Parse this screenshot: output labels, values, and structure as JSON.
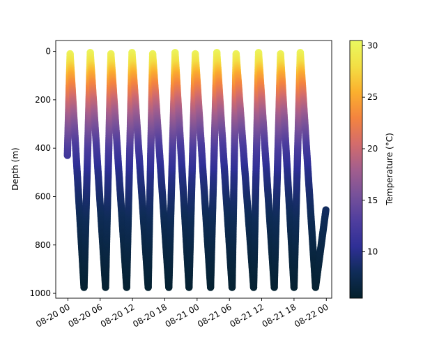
{
  "chart_data": {
    "type": "scatter",
    "title": "",
    "xlabel": "",
    "ylabel": "Depth (m)",
    "y_inverted": true,
    "ylim": [
      1020,
      -45
    ],
    "yticks": [
      0,
      200,
      400,
      600,
      800,
      1000
    ],
    "xticks": [
      "08-20 00",
      "08-20 06",
      "08-20 12",
      "08-20 18",
      "08-21 00",
      "08-21 06",
      "08-21 12",
      "08-21 18",
      "08-22 00"
    ],
    "xlim": [
      "08-19 21:45",
      "08-22 01:00"
    ],
    "x_tick_rotation": 30,
    "colorbar": {
      "label": "Temperature (°C)",
      "ticks": [
        10,
        15,
        20,
        25,
        30
      ],
      "range": [
        5.5,
        30.5
      ],
      "colormap": "thermal",
      "color_stops": [
        "#04202b",
        "#0f2c58",
        "#2f2f96",
        "#4f3e9e",
        "#77519a",
        "#a35e8d",
        "#d46c6b",
        "#f4843f",
        "#fbb02e",
        "#f3df44",
        "#e9f95f"
      ]
    },
    "temperature_profile": {
      "depth": [
        0,
        50,
        100,
        150,
        200,
        300,
        400,
        500,
        600,
        700,
        800,
        900,
        980
      ],
      "temperature": [
        30.3,
        28,
        25,
        22.5,
        20,
        16,
        12.5,
        10,
        8.8,
        7.8,
        7,
        6.3,
        5.8
      ]
    },
    "series": [
      {
        "x": [
          "08-19 23:55",
          "08-20 00:25",
          "08-20 03:00",
          "08-20 04:10",
          "08-20 07:00",
          "08-20 08:00",
          "08-20 10:55",
          "08-20 11:55",
          "08-20 14:55",
          "08-20 15:45",
          "08-20 18:45",
          "08-20 19:55",
          "08-20 22:30",
          "08-20 23:40",
          "08-21 02:30",
          "08-21 03:40",
          "08-21 06:30",
          "08-21 07:15",
          "08-21 10:30",
          "08-21 11:25",
          "08-21 14:20",
          "08-21 15:30",
          "08-21 18:00",
          "08-21 19:10",
          "08-21 22:00",
          "08-21 23:55"
        ],
        "y": [
          430,
          10,
          975,
          5,
          975,
          10,
          975,
          5,
          975,
          10,
          975,
          5,
          975,
          10,
          975,
          5,
          975,
          10,
          975,
          5,
          975,
          10,
          975,
          5,
          975,
          655
        ]
      }
    ]
  }
}
